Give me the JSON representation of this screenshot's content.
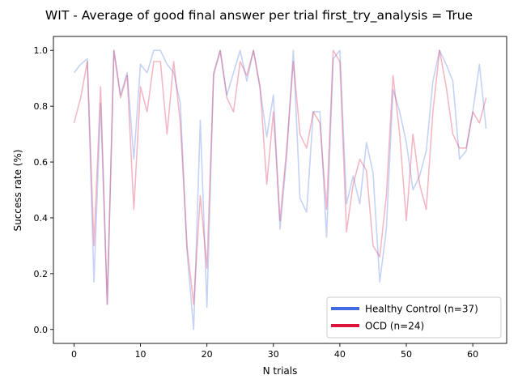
{
  "chart_data": {
    "type": "line",
    "title": "WIT - Average of good final answer per trial first_try_analysis = True",
    "xlabel": "N trials",
    "ylabel": "Success rate (%)",
    "xlim": [
      -3.1,
      65.1
    ],
    "ylim": [
      -0.05,
      1.05
    ],
    "xticks": [
      0,
      10,
      20,
      30,
      40,
      50,
      60
    ],
    "xtick_labels": [
      "0",
      "10",
      "20",
      "30",
      "40",
      "50",
      "60"
    ],
    "yticks": [
      0.0,
      0.2,
      0.4,
      0.6,
      0.8,
      1.0
    ],
    "ytick_labels": [
      "0.0",
      "0.2",
      "0.4",
      "0.6",
      "0.8",
      "1.0"
    ],
    "grid": false,
    "legend_position": "lower-right",
    "series": [
      {
        "name": "Healthy Control (n=37)",
        "color": "#4169e1",
        "line_alpha": 0.3,
        "x": [
          0,
          1,
          2,
          3,
          4,
          5,
          6,
          7,
          8,
          9,
          10,
          11,
          12,
          13,
          14,
          15,
          16,
          17,
          18,
          19,
          20,
          21,
          22,
          23,
          24,
          25,
          26,
          27,
          28,
          29,
          30,
          31,
          32,
          33,
          34,
          35,
          36,
          37,
          38,
          39,
          40,
          41,
          42,
          43,
          44,
          45,
          46,
          47,
          48,
          49,
          50,
          51,
          52,
          53,
          54,
          55,
          56,
          57,
          58,
          59,
          60,
          61,
          62
        ],
        "values": [
          0.92,
          0.95,
          0.97,
          0.17,
          0.81,
          0.09,
          1.0,
          0.84,
          0.92,
          0.61,
          0.95,
          0.92,
          1.0,
          1.0,
          0.95,
          0.92,
          0.81,
          0.28,
          0.0,
          0.75,
          0.08,
          0.92,
          1.0,
          0.84,
          0.92,
          1.0,
          0.89,
          1.0,
          0.86,
          0.69,
          0.84,
          0.36,
          0.62,
          1.0,
          0.47,
          0.42,
          0.78,
          0.78,
          0.33,
          0.97,
          1.0,
          0.45,
          0.55,
          0.45,
          0.67,
          0.56,
          0.17,
          0.36,
          0.86,
          0.78,
          0.67,
          0.5,
          0.55,
          0.64,
          0.89,
          1.0,
          0.95,
          0.89,
          0.61,
          0.64,
          0.78,
          0.95,
          0.72
        ]
      },
      {
        "name": "OCD (n=24)",
        "color": "#dc143c",
        "line_alpha": 0.3,
        "x": [
          0,
          1,
          2,
          3,
          4,
          5,
          6,
          7,
          8,
          9,
          10,
          11,
          12,
          13,
          14,
          15,
          16,
          17,
          18,
          19,
          20,
          21,
          22,
          23,
          24,
          25,
          26,
          27,
          28,
          29,
          30,
          31,
          32,
          33,
          34,
          35,
          36,
          37,
          38,
          39,
          40,
          41,
          42,
          43,
          44,
          45,
          46,
          47,
          48,
          49,
          50,
          51,
          52,
          53,
          54,
          55,
          56,
          57,
          58,
          59,
          60,
          61,
          62
        ],
        "values": [
          0.74,
          0.83,
          0.96,
          0.3,
          0.87,
          0.09,
          1.0,
          0.83,
          0.91,
          0.43,
          0.87,
          0.78,
          0.96,
          0.96,
          0.7,
          0.96,
          0.74,
          0.3,
          0.09,
          0.48,
          0.22,
          0.91,
          1.0,
          0.83,
          0.78,
          0.96,
          0.91,
          1.0,
          0.87,
          0.52,
          0.78,
          0.39,
          0.65,
          0.96,
          0.7,
          0.65,
          0.78,
          0.74,
          0.43,
          1.0,
          0.96,
          0.35,
          0.52,
          0.61,
          0.57,
          0.3,
          0.26,
          0.48,
          0.91,
          0.7,
          0.39,
          0.7,
          0.52,
          0.43,
          0.78,
          1.0,
          0.87,
          0.7,
          0.65,
          0.65,
          0.78,
          0.74,
          0.83
        ]
      }
    ]
  }
}
